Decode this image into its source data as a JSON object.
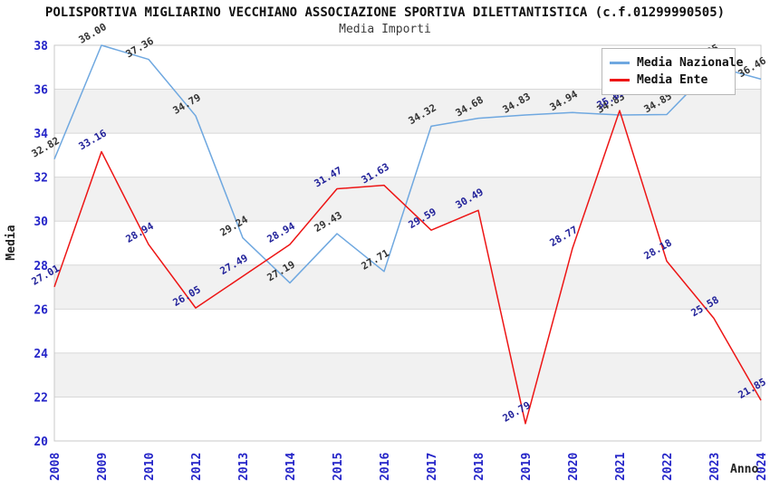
{
  "header": {
    "title": "POLISPORTIVA MIGLIARINO VECCHIANO ASSOCIAZIONE SPORTIVA DILETTANTISTICA (c.f.01299990505)",
    "subtitle": "Media Importi"
  },
  "legend": {
    "items": [
      {
        "label": "Media Nazionale",
        "color": "#6FA8E0"
      },
      {
        "label": "Media Ente",
        "color": "#ED1515"
      }
    ]
  },
  "axes": {
    "x_title": "Anno",
    "y_title": "Media",
    "y_ticks": [
      38,
      36,
      34,
      32,
      30,
      28,
      26,
      24,
      22,
      20
    ],
    "tick_label_color": "#2424C8"
  },
  "colors": {
    "band_fill": "#F1F1F1",
    "grid_line": "#D8D8D8",
    "frame": "#C9C9C9",
    "national_line": "#6FA8E0",
    "ente_line": "#ED1515",
    "national_label": "#333333",
    "ente_label": "#22229A"
  },
  "chart_data": {
    "type": "line",
    "title": "POLISPORTIVA MIGLIARINO VECCHIANO ASSOCIAZIONE SPORTIVA DILETTANTISTICA (c.f.01299990505)",
    "subtitle": "Media Importi",
    "xlabel": "Anno",
    "ylabel": "Media",
    "ylim": [
      20,
      38
    ],
    "ytick_step": 2,
    "grid": true,
    "alternating_bands": true,
    "legend_position": "top-right",
    "categories": [
      "2008",
      "2009",
      "2010",
      "2012",
      "2013",
      "2014",
      "2015",
      "2016",
      "2017",
      "2018",
      "2019",
      "2020",
      "2021",
      "2022",
      "2023",
      "2024"
    ],
    "series": [
      {
        "name": "Media Nazionale",
        "color": "#6FA8E0",
        "label_color": "#333333",
        "values": [
          32.82,
          38.0,
          37.36,
          34.79,
          29.24,
          27.19,
          29.43,
          27.71,
          34.32,
          34.68,
          34.83,
          34.94,
          34.83,
          34.85,
          37.05,
          36.46
        ]
      },
      {
        "name": "Media Ente",
        "color": "#ED1515",
        "label_color": "#22229A",
        "values": [
          27.01,
          33.16,
          28.94,
          26.05,
          27.49,
          28.94,
          31.47,
          31.63,
          29.59,
          30.49,
          20.79,
          28.77,
          35.03,
          28.18,
          25.58,
          21.85
        ]
      }
    ]
  }
}
